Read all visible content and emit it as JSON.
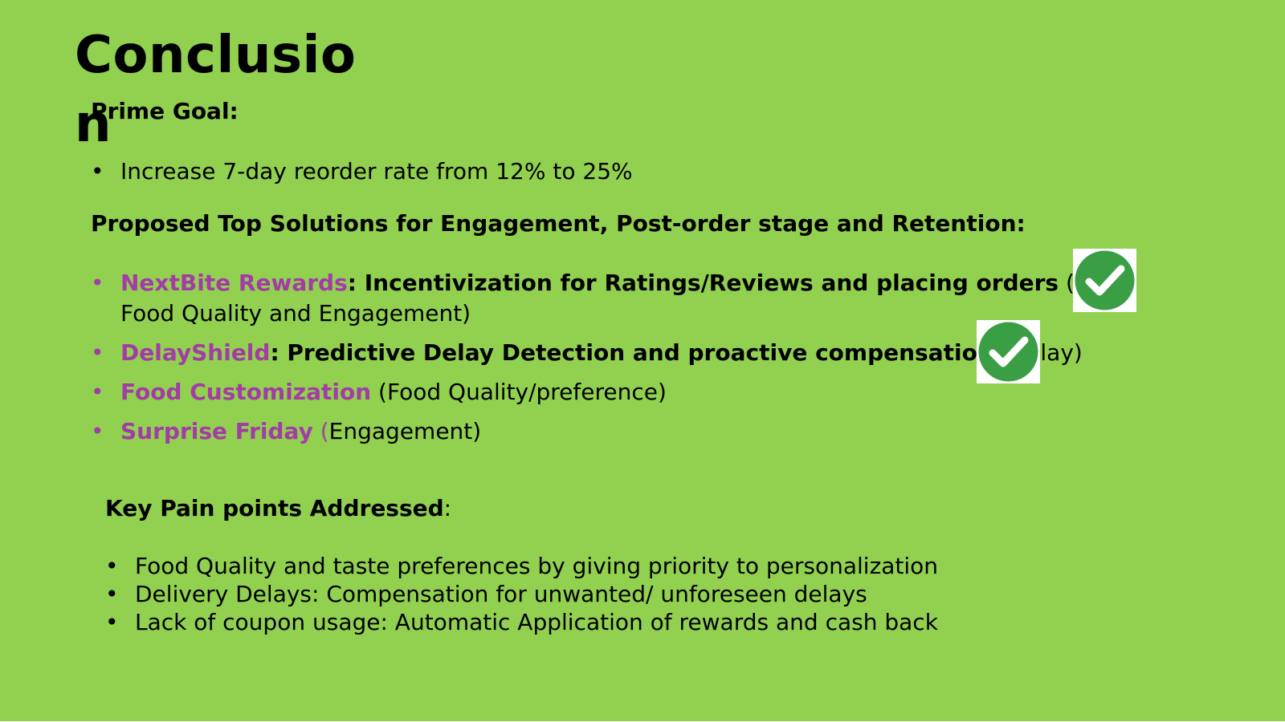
{
  "slide": {
    "title": "Conclusion",
    "background_color": "#92d050",
    "accent_color": "#a33ca6"
  },
  "prime_goal": {
    "heading": "Prime Goal:",
    "items": [
      "Increase 7-day reorder rate from 12% to 25%"
    ]
  },
  "solutions": {
    "heading": "Proposed Top Solutions for Engagement, Post-order stage and Retention:",
    "items": [
      {
        "name": "NextBite Rewards",
        "description": ": Incentivization for Ratings/Reviews and placing orders",
        "tag": " ( Food Quality and Engagement)",
        "checked": true
      },
      {
        "name": "DelayShield",
        "description": ": Predictive Delay Detection and proactive compensation",
        "tag": " (Delay)",
        "checked": true
      },
      {
        "name": "Food Customization",
        "description": "",
        "tag": " (Food Quality/preference)",
        "checked": false
      },
      {
        "name": "Surprise Friday",
        "description": "",
        "paren": " (",
        "tag": "Engagement)",
        "checked": false
      }
    ]
  },
  "pain_points": {
    "heading": "Key Pain points Addressed",
    "heading_suffix": ":",
    "items": [
      "Food Quality and taste preferences by giving priority to personalization",
      "Delivery Delays: Compensation for unwanted/ unforeseen delays",
      "Lack of coupon usage: Automatic Application of rewards and cash back"
    ]
  },
  "icons": {
    "check": "check-circle-icon",
    "check_color": "#3a9e45"
  }
}
